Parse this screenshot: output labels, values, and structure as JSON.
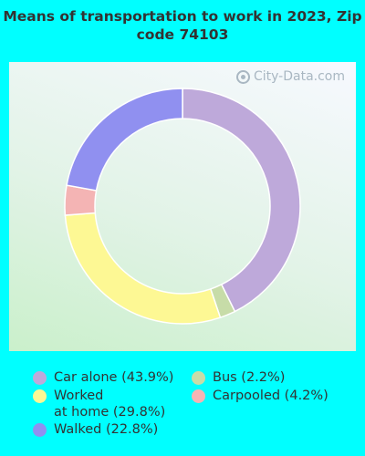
{
  "title": "Means of transportation to work in 2023, Zip code 74103",
  "watermark": "City-Data.com",
  "chart_data": {
    "type": "pie",
    "title": "Means of transportation to work in 2023, Zip code 74103",
    "donut": true,
    "series": [
      {
        "name": "Car alone",
        "label": "Car alone (43.9%)",
        "value": 43.9,
        "color": "#bea9da"
      },
      {
        "name": "Bus",
        "label": "Bus (2.2%)",
        "value": 2.2,
        "color": "#c7dca8"
      },
      {
        "name": "Worked at home",
        "label": "Worked\nat home (29.8%)",
        "value": 29.8,
        "color": "#fdf894"
      },
      {
        "name": "Carpooled",
        "label": "Carpooled (4.2%)",
        "value": 4.2,
        "color": "#f4b4b4"
      },
      {
        "name": "Walked",
        "label": "Walked (22.8%)",
        "value": 22.8,
        "color": "#9090f0"
      }
    ]
  }
}
